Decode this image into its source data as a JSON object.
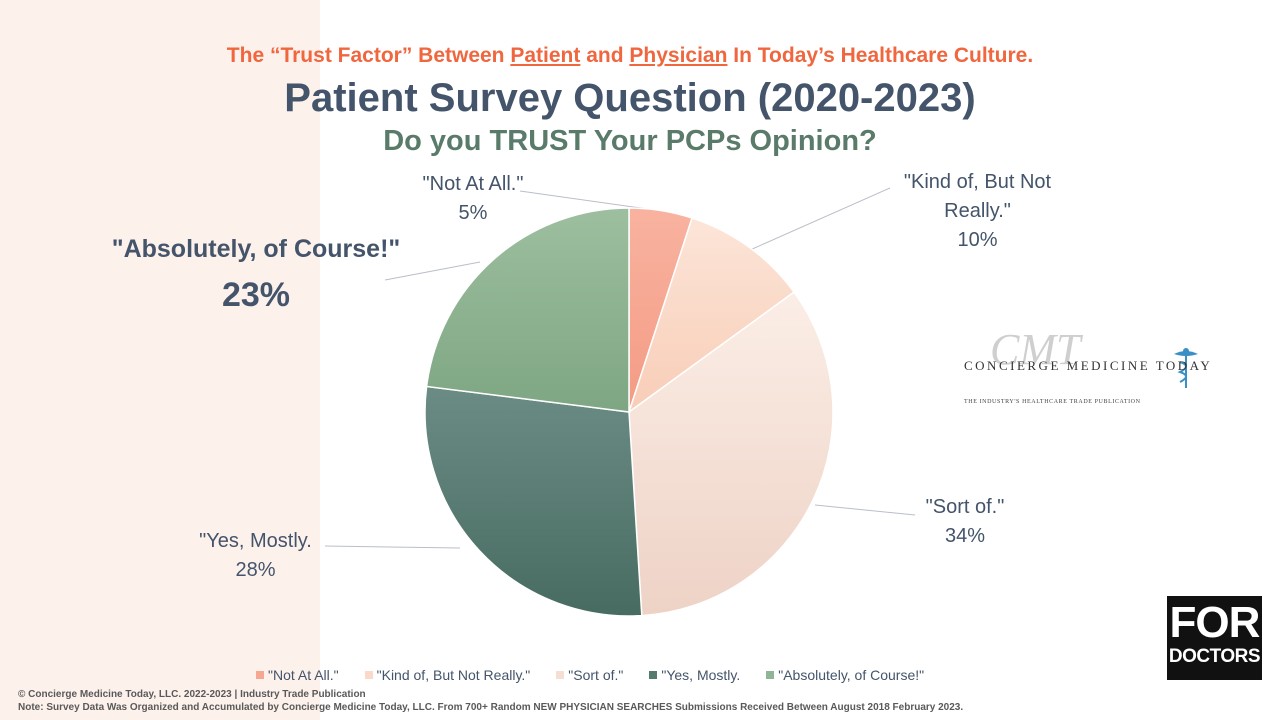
{
  "header": {
    "top_title_pre": "The “Trust Factor” Between ",
    "top_title_patient": "Patient",
    "top_title_mid": " and ",
    "top_title_physician": "Physician",
    "top_title_post": " In Today’s Healthcare Culture.",
    "main_title": "Patient Survey Question (2020-2023)",
    "sub_title": "Do you TRUST Your PCPs Opinion?"
  },
  "chart_data": {
    "type": "pie",
    "title": "Patient Survey Question (2020-2023)",
    "subtitle": "Do you TRUST Your PCPs Opinion?",
    "categories": [
      "\"Not At All.\"",
      "\"Kind of, But Not Really.\"",
      "\"Sort of.\"",
      "\"Yes, Mostly.",
      "\"Absolutely, of Course!\""
    ],
    "values": [
      5,
      10,
      34,
      28,
      23
    ],
    "value_labels": [
      "5%",
      "10%",
      "34%",
      "28%",
      "23%"
    ],
    "colors": [
      "#f6a791",
      "#fad9c8",
      "#f5dfd4",
      "#577a70",
      "#8fb596"
    ],
    "legend_position": "bottom"
  },
  "labels": {
    "not_at_all": {
      "name": "\"Not At All.\"",
      "pct": "5%"
    },
    "kind_of_line1": "\"Kind of, But Not",
    "kind_of_line2": "Really.\"",
    "kind_of_pct": "10%",
    "sort_of": {
      "name": "\"Sort of.\"",
      "pct": "34%"
    },
    "yes_mostly": {
      "name": "\"Yes, Mostly.",
      "pct": "28%"
    },
    "absolutely": {
      "name": "\"Absolutely, of Course!\"",
      "pct": "23%"
    }
  },
  "legend": [
    {
      "label": "\"Not At All.\"",
      "color": "#f6a791"
    },
    {
      "label": "\"Kind of, But Not Really.\"",
      "color": "#fad9c8"
    },
    {
      "label": "\"Sort of.\"",
      "color": "#f5dfd4"
    },
    {
      "label": "\"Yes, Mostly.",
      "color": "#577a70"
    },
    {
      "label": "\"Absolutely, of Course!\"",
      "color": "#8fb596"
    }
  ],
  "logos": {
    "cmt_script": "CMT",
    "cmt_name": "CONCIERGE MEDICINE TODAY",
    "cmt_tagline": "THE INDUSTRY'S HEALTHCARE TRADE PUBLICATION",
    "fd_for": "FOR",
    "fd_doctors": "DOCTORS"
  },
  "footer": {
    "copyright": "© Concierge Medicine Today, LLC. 2022-2023 | Industry Trade Publication",
    "note": "Note: Survey Data Was Organized and Accumulated by Concierge Medicine Today, LLC. From 700+ Random NEW PHYSICIAN SEARCHES Submissions Received Between August 2018 February 2023."
  }
}
